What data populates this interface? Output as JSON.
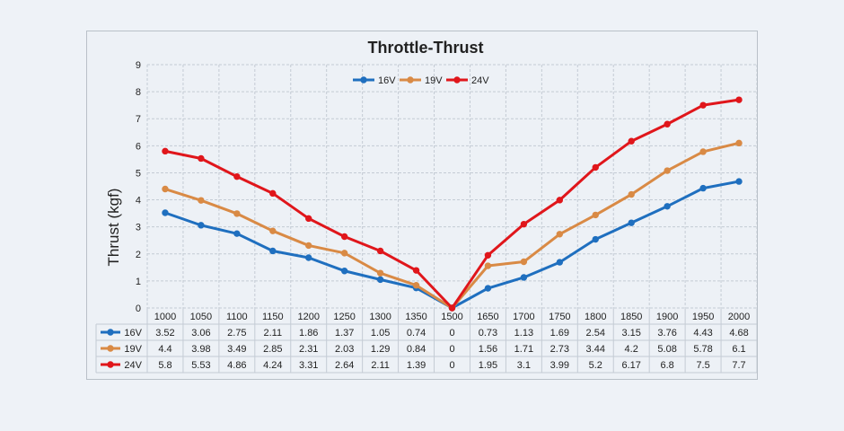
{
  "chart_data": {
    "type": "line",
    "title": "Throttle-Thrust",
    "xlabel": "",
    "ylabel": "Thrust  (kgf)",
    "ylim": [
      0,
      9
    ],
    "yticks": [
      0,
      1,
      2,
      3,
      4,
      5,
      6,
      7,
      8,
      9
    ],
    "grid": true,
    "legend": "top-center",
    "data_table": true,
    "categories": [
      "1000",
      "1050",
      "1100",
      "1150",
      "1200",
      "1250",
      "1300",
      "1350",
      "1500",
      "1650",
      "1700",
      "1750",
      "1800",
      "1850",
      "1900",
      "1950",
      "2000"
    ],
    "series": [
      {
        "name": "16V",
        "color": "#1f6fbf",
        "values": [
          3.52,
          3.06,
          2.75,
          2.11,
          1.86,
          1.37,
          1.05,
          0.74,
          0,
          0.73,
          1.13,
          1.69,
          2.54,
          3.15,
          3.76,
          4.43,
          4.68
        ]
      },
      {
        "name": "19V",
        "color": "#d98a45",
        "values": [
          4.4,
          3.98,
          3.49,
          2.85,
          2.31,
          2.03,
          1.29,
          0.84,
          0,
          1.56,
          1.71,
          2.73,
          3.44,
          4.2,
          5.08,
          5.78,
          6.1
        ]
      },
      {
        "name": "24V",
        "color": "#e0161b",
        "values": [
          5.8,
          5.53,
          4.86,
          4.24,
          3.31,
          2.64,
          2.11,
          1.39,
          0,
          1.95,
          3.1,
          3.99,
          5.2,
          6.17,
          6.8,
          7.5,
          7.7
        ]
      }
    ]
  }
}
